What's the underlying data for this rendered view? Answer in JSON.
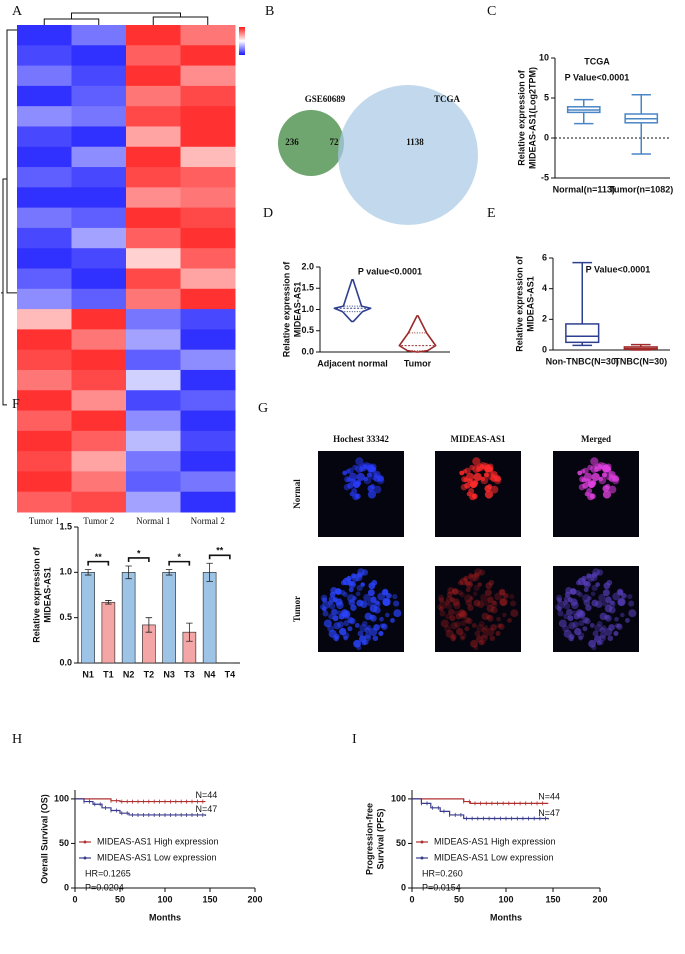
{
  "chart_data": [
    {
      "type": "heatmap",
      "panel": "A",
      "categories": [
        "Tumor 1",
        "Tumor 2",
        "Normal 1",
        "Normal 2"
      ],
      "zlim": [
        -1,
        1
      ],
      "colors": [
        "#1a1aff",
        "#ffffff",
        "#ff1a1a"
      ],
      "values": [
        [
          -0.9,
          -0.6,
          0.9,
          0.6
        ],
        [
          -0.8,
          -0.9,
          0.7,
          0.9
        ],
        [
          -0.6,
          -0.8,
          0.9,
          0.5
        ],
        [
          -0.9,
          -0.7,
          0.6,
          0.8
        ],
        [
          -0.5,
          -0.6,
          0.8,
          0.9
        ],
        [
          -0.8,
          -0.9,
          0.4,
          0.9
        ],
        [
          -0.9,
          -0.5,
          0.9,
          0.3
        ],
        [
          -0.7,
          -0.8,
          0.8,
          0.7
        ],
        [
          -0.9,
          -0.9,
          0.5,
          0.6
        ],
        [
          -0.6,
          -0.7,
          0.9,
          0.8
        ],
        [
          -0.8,
          -0.4,
          0.7,
          0.9
        ],
        [
          -0.9,
          -0.8,
          0.2,
          0.7
        ],
        [
          -0.7,
          -0.9,
          0.8,
          0.4
        ],
        [
          -0.5,
          -0.7,
          0.6,
          0.9
        ],
        [
          0.3,
          0.9,
          -0.6,
          -0.8
        ],
        [
          0.9,
          0.6,
          -0.4,
          -0.9
        ],
        [
          0.8,
          0.9,
          -0.7,
          -0.5
        ],
        [
          0.6,
          0.8,
          -0.2,
          -0.9
        ],
        [
          0.9,
          0.5,
          -0.8,
          -0.7
        ],
        [
          0.7,
          0.9,
          -0.5,
          -0.9
        ],
        [
          0.9,
          0.7,
          -0.3,
          -0.8
        ],
        [
          0.8,
          0.4,
          -0.6,
          -0.9
        ],
        [
          0.9,
          0.6,
          -0.7,
          -0.6
        ],
        [
          0.7,
          0.8,
          -0.4,
          -0.9
        ]
      ]
    },
    {
      "type": "venn",
      "panel": "B",
      "sets": [
        {
          "name": "GSE60689",
          "color": "#1f9e55",
          "fill": "#5f9c5f"
        },
        {
          "name": "TCGA",
          "color": "#4a7fc1",
          "fill": "#a8c9e6"
        }
      ],
      "values": [
        236,
        72,
        1138
      ]
    },
    {
      "type": "box",
      "panel": "C",
      "title": "TCGA",
      "subtitle": "P Value<0.0001",
      "ylabel": [
        "Relative expression of",
        "MIDEAS-AS1(Log2TPM)"
      ],
      "categories": [
        "Normal(n=113)",
        "Tumor(n=1082)"
      ],
      "colors": [
        "#4a86c5",
        "#4a86c5"
      ],
      "boxes": [
        {
          "low": 1.8,
          "q1": 3.2,
          "median": 3.5,
          "q3": 3.9,
          "high": 4.8
        },
        {
          "low": -2.0,
          "q1": 1.9,
          "median": 2.4,
          "q3": 3.0,
          "high": 5.4
        }
      ],
      "hline": 0,
      "ylim": [
        -5,
        10
      ],
      "yticks": [
        -5,
        0,
        5,
        10
      ]
    },
    {
      "type": "violin",
      "panel": "D",
      "title": "P value<0.0001",
      "ylabel": [
        "Relative expression of",
        "MIDEAS-AS1"
      ],
      "categories": [
        "Adjacent normal",
        "Tumor"
      ],
      "colors": [
        "#2f3f8f",
        "#9b2a2a"
      ],
      "violins": [
        {
          "min": 0.72,
          "q1": 0.95,
          "median": 1.03,
          "q3": 1.08,
          "max": 1.7
        },
        {
          "min": 0.0,
          "q1": 0.03,
          "median": 0.15,
          "q3": 0.45,
          "max": 0.85
        }
      ],
      "ylim": [
        0,
        2
      ],
      "yticks": [
        {
          "value": 0,
          "label": "0.0"
        },
        {
          "value": 0.5,
          "label": "0.5"
        },
        {
          "value": 1,
          "label": "1.0"
        },
        {
          "value": 1.5,
          "label": "1.5"
        },
        {
          "value": 2,
          "label": "2.0"
        }
      ]
    },
    {
      "type": "box",
      "panel": "E",
      "title": "P Value<0.0001",
      "ylabel": [
        "Relative expression of",
        "MIDEAS-AS1"
      ],
      "categories": [
        "Non-TNBC(N=30)",
        "TNBC(N=30)"
      ],
      "colors": [
        "#2f3f8f",
        "#a02a2a"
      ],
      "boxes": [
        {
          "low": 0.3,
          "q1": 0.5,
          "median": 0.9,
          "q3": 1.7,
          "high": 5.7
        },
        {
          "low": 0.0,
          "q1": 0.05,
          "median": 0.1,
          "q3": 0.2,
          "high": 0.35
        }
      ],
      "ylim": [
        0,
        6
      ],
      "yticks": [
        0,
        2,
        4,
        6
      ]
    },
    {
      "type": "bar",
      "panel": "F",
      "ylabel": [
        "Relative expression of",
        "MIDEAS-AS1"
      ],
      "categories": [
        "N1",
        "T1",
        "N2",
        "T2",
        "N3",
        "T3",
        "N4",
        "T4"
      ],
      "values": [
        1.0,
        0.67,
        1.0,
        0.42,
        1.0,
        0.34,
        1.0,
        0.0
      ],
      "errors": [
        0.03,
        0.02,
        0.07,
        0.08,
        0.03,
        0.1,
        0.1,
        0.0
      ],
      "colors": [
        "#9dc3e6",
        "#f4a6a6",
        "#9dc3e6",
        "#f4a6a6",
        "#9dc3e6",
        "#f4a6a6",
        "#9dc3e6",
        "#f4a6a6"
      ],
      "significance": [
        "**",
        "*",
        "*",
        "**"
      ],
      "ylim": [
        0,
        1.5
      ],
      "yticks": [
        {
          "value": 0,
          "label": "0.0"
        },
        {
          "value": 0.5,
          "label": "0.5"
        },
        {
          "value": 1,
          "label": "1.0"
        },
        {
          "value": 1.5,
          "label": "1.5"
        }
      ]
    },
    {
      "type": "survival",
      "panel": "H",
      "ylabel": [
        "Overall Survival (OS)"
      ],
      "xlabel": "Months",
      "series": [
        {
          "name": "MIDEAS-AS1 High expression",
          "color": "#b03030",
          "label": "N=44",
          "x": [
            0,
            40,
            50,
            145
          ],
          "values": [
            100,
            98,
            97,
            97
          ]
        },
        {
          "name": "MIDEAS-AS1 Low expression",
          "color": "#3a3a8c",
          "label": "N=47",
          "x": [
            0,
            10,
            20,
            30,
            40,
            50,
            60,
            145
          ],
          "values": [
            100,
            97,
            94,
            90,
            87,
            84,
            82,
            81
          ]
        }
      ],
      "stats": [
        "HR=0.1265",
        "P=0.0204"
      ],
      "xlim": [
        0,
        200
      ],
      "xticks": [
        0,
        50,
        100,
        150,
        200
      ],
      "ylim": [
        0,
        110
      ],
      "yticks": [
        0,
        50,
        100
      ]
    },
    {
      "type": "survival",
      "panel": "I",
      "ylabel": [
        "Progression-free",
        "Survival (PFS)"
      ],
      "xlabel": "Months",
      "series": [
        {
          "name": "MIDEAS-AS1 High expression",
          "color": "#b03030",
          "label": "N=44",
          "x": [
            0,
            55,
            62,
            145
          ],
          "values": [
            100,
            97,
            95,
            95
          ]
        },
        {
          "name": "MIDEAS-AS1 Low expression",
          "color": "#3a3a8c",
          "label": "N=47",
          "x": [
            0,
            10,
            20,
            30,
            40,
            55,
            145
          ],
          "values": [
            100,
            95,
            90,
            86,
            82,
            78,
            77
          ]
        }
      ],
      "stats": [
        "HR=0.260",
        "P=0.0154"
      ],
      "xlim": [
        0,
        200
      ],
      "xticks": [
        0,
        50,
        100,
        150,
        200
      ],
      "ylim": [
        0,
        110
      ],
      "yticks": [
        0,
        50,
        100
      ]
    }
  ],
  "panel_G": {
    "label": "G",
    "columns": [
      "Hochest 33342",
      "MIDEAS-AS1",
      "Merged"
    ],
    "column_colors": [
      "#2f6fc0",
      "#d02020",
      "#8a2fa8"
    ],
    "rows": [
      "Normal",
      "Tumor"
    ]
  }
}
